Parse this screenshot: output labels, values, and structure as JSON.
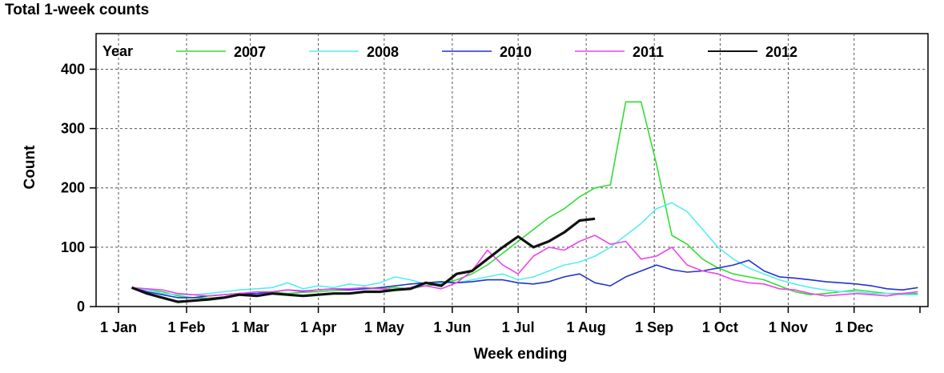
{
  "chart_data": {
    "type": "line",
    "title": "Total 1-week counts",
    "xlabel": "Week ending",
    "ylabel": "Count",
    "x_ticks": [
      "1 Jan",
      "1 Feb",
      "1 Mar",
      "1 Apr",
      "1 May",
      "1 Jun",
      "1 Jul",
      "1 Aug",
      "1 Sep",
      "1 Oct",
      "1 Nov",
      "1 Dec"
    ],
    "x_domain": [
      "2012-01-01",
      "2012-12-31"
    ],
    "ylim": [
      0,
      460
    ],
    "y_ticks": [
      0,
      100,
      200,
      300,
      400
    ],
    "grid": true,
    "legend": {
      "title": "Year",
      "placement": "top"
    },
    "series": [
      {
        "name": "2007",
        "color": "#33dd33",
        "width": 1.6,
        "points": [
          [
            "01-07",
            32
          ],
          [
            "01-14",
            28
          ],
          [
            "01-21",
            25
          ],
          [
            "01-28",
            18
          ],
          [
            "02-04",
            15
          ],
          [
            "02-11",
            14
          ],
          [
            "02-18",
            16
          ],
          [
            "02-25",
            20
          ],
          [
            "03-04",
            22
          ],
          [
            "03-11",
            25
          ],
          [
            "03-18",
            22
          ],
          [
            "03-25",
            24
          ],
          [
            "04-01",
            25
          ],
          [
            "04-08",
            27
          ],
          [
            "04-15",
            28
          ],
          [
            "04-22",
            30
          ],
          [
            "04-29",
            30
          ],
          [
            "05-06",
            32
          ],
          [
            "05-13",
            30
          ],
          [
            "05-20",
            35
          ],
          [
            "05-27",
            38
          ],
          [
            "06-03",
            45
          ],
          [
            "06-10",
            55
          ],
          [
            "06-17",
            70
          ],
          [
            "06-24",
            90
          ],
          [
            "07-01",
            110
          ],
          [
            "07-08",
            130
          ],
          [
            "07-15",
            150
          ],
          [
            "07-22",
            165
          ],
          [
            "07-29",
            185
          ],
          [
            "08-05",
            200
          ],
          [
            "08-12",
            205
          ],
          [
            "08-19",
            345
          ],
          [
            "08-26",
            345
          ],
          [
            "09-02",
            240
          ],
          [
            "09-09",
            120
          ],
          [
            "09-16",
            105
          ],
          [
            "09-23",
            80
          ],
          [
            "09-30",
            65
          ],
          [
            "10-07",
            55
          ],
          [
            "10-14",
            50
          ],
          [
            "10-21",
            45
          ],
          [
            "10-28",
            35
          ],
          [
            "11-04",
            25
          ],
          [
            "11-11",
            20
          ],
          [
            "11-18",
            22
          ],
          [
            "11-25",
            25
          ],
          [
            "12-02",
            28
          ],
          [
            "12-09",
            25
          ],
          [
            "12-16",
            22
          ],
          [
            "12-23",
            22
          ],
          [
            "12-30",
            22
          ]
        ]
      },
      {
        "name": "2008",
        "color": "#55eeee",
        "width": 1.6,
        "points": [
          [
            "01-07",
            30
          ],
          [
            "01-14",
            28
          ],
          [
            "01-21",
            22
          ],
          [
            "01-28",
            20
          ],
          [
            "02-04",
            20
          ],
          [
            "02-11",
            22
          ],
          [
            "02-18",
            25
          ],
          [
            "02-25",
            28
          ],
          [
            "03-04",
            30
          ],
          [
            "03-11",
            32
          ],
          [
            "03-18",
            40
          ],
          [
            "03-25",
            30
          ],
          [
            "04-01",
            35
          ],
          [
            "04-08",
            32
          ],
          [
            "04-15",
            38
          ],
          [
            "04-22",
            35
          ],
          [
            "04-29",
            40
          ],
          [
            "05-06",
            50
          ],
          [
            "05-13",
            45
          ],
          [
            "05-20",
            38
          ],
          [
            "05-27",
            40
          ],
          [
            "06-03",
            40
          ],
          [
            "06-10",
            45
          ],
          [
            "06-17",
            50
          ],
          [
            "06-24",
            55
          ],
          [
            "07-01",
            45
          ],
          [
            "07-08",
            50
          ],
          [
            "07-15",
            60
          ],
          [
            "07-22",
            70
          ],
          [
            "07-29",
            75
          ],
          [
            "08-05",
            85
          ],
          [
            "08-12",
            100
          ],
          [
            "08-19",
            120
          ],
          [
            "08-26",
            140
          ],
          [
            "09-02",
            165
          ],
          [
            "09-09",
            175
          ],
          [
            "09-16",
            160
          ],
          [
            "09-23",
            130
          ],
          [
            "09-30",
            100
          ],
          [
            "10-07",
            80
          ],
          [
            "10-14",
            65
          ],
          [
            "10-21",
            55
          ],
          [
            "10-28",
            45
          ],
          [
            "11-04",
            38
          ],
          [
            "11-11",
            32
          ],
          [
            "11-18",
            28
          ],
          [
            "11-25",
            25
          ],
          [
            "12-02",
            25
          ],
          [
            "12-09",
            22
          ],
          [
            "12-16",
            22
          ],
          [
            "12-23",
            20
          ],
          [
            "12-30",
            20
          ]
        ]
      },
      {
        "name": "2010",
        "color": "#2233cc",
        "width": 1.6,
        "points": [
          [
            "01-07",
            32
          ],
          [
            "01-14",
            25
          ],
          [
            "01-21",
            20
          ],
          [
            "01-28",
            15
          ],
          [
            "02-04",
            15
          ],
          [
            "02-11",
            18
          ],
          [
            "02-18",
            20
          ],
          [
            "02-25",
            22
          ],
          [
            "03-04",
            22
          ],
          [
            "03-11",
            25
          ],
          [
            "03-18",
            28
          ],
          [
            "03-25",
            26
          ],
          [
            "04-01",
            28
          ],
          [
            "04-08",
            30
          ],
          [
            "04-15",
            28
          ],
          [
            "04-22",
            30
          ],
          [
            "04-29",
            32
          ],
          [
            "05-06",
            35
          ],
          [
            "05-13",
            38
          ],
          [
            "05-20",
            40
          ],
          [
            "05-27",
            42
          ],
          [
            "06-03",
            40
          ],
          [
            "06-10",
            42
          ],
          [
            "06-17",
            45
          ],
          [
            "06-24",
            45
          ],
          [
            "07-01",
            40
          ],
          [
            "07-08",
            38
          ],
          [
            "07-15",
            42
          ],
          [
            "07-22",
            50
          ],
          [
            "07-29",
            55
          ],
          [
            "08-05",
            40
          ],
          [
            "08-12",
            35
          ],
          [
            "08-19",
            50
          ],
          [
            "08-26",
            60
          ],
          [
            "09-02",
            70
          ],
          [
            "09-09",
            62
          ],
          [
            "09-16",
            58
          ],
          [
            "09-23",
            60
          ],
          [
            "09-30",
            65
          ],
          [
            "10-07",
            70
          ],
          [
            "10-14",
            78
          ],
          [
            "10-21",
            60
          ],
          [
            "10-28",
            50
          ],
          [
            "11-04",
            48
          ],
          [
            "11-11",
            45
          ],
          [
            "11-18",
            42
          ],
          [
            "11-25",
            40
          ],
          [
            "12-02",
            38
          ],
          [
            "12-09",
            35
          ],
          [
            "12-16",
            30
          ],
          [
            "12-23",
            28
          ],
          [
            "12-30",
            32
          ]
        ]
      },
      {
        "name": "2011",
        "color": "#ee44ee",
        "width": 1.6,
        "points": [
          [
            "01-07",
            32
          ],
          [
            "01-14",
            30
          ],
          [
            "01-21",
            28
          ],
          [
            "01-28",
            22
          ],
          [
            "02-04",
            20
          ],
          [
            "02-11",
            18
          ],
          [
            "02-18",
            20
          ],
          [
            "02-25",
            22
          ],
          [
            "03-04",
            25
          ],
          [
            "03-11",
            25
          ],
          [
            "03-18",
            28
          ],
          [
            "03-25",
            25
          ],
          [
            "04-01",
            28
          ],
          [
            "04-08",
            30
          ],
          [
            "04-15",
            30
          ],
          [
            "04-22",
            32
          ],
          [
            "04-29",
            30
          ],
          [
            "05-06",
            28
          ],
          [
            "05-13",
            32
          ],
          [
            "05-20",
            35
          ],
          [
            "05-27",
            30
          ],
          [
            "06-03",
            40
          ],
          [
            "06-10",
            60
          ],
          [
            "06-17",
            95
          ],
          [
            "06-24",
            70
          ],
          [
            "07-01",
            55
          ],
          [
            "07-08",
            85
          ],
          [
            "07-15",
            100
          ],
          [
            "07-22",
            95
          ],
          [
            "07-29",
            110
          ],
          [
            "08-05",
            120
          ],
          [
            "08-12",
            105
          ],
          [
            "08-19",
            110
          ],
          [
            "08-26",
            80
          ],
          [
            "09-02",
            85
          ],
          [
            "09-09",
            100
          ],
          [
            "09-16",
            70
          ],
          [
            "09-23",
            60
          ],
          [
            "09-30",
            55
          ],
          [
            "10-07",
            45
          ],
          [
            "10-14",
            40
          ],
          [
            "10-21",
            38
          ],
          [
            "10-28",
            30
          ],
          [
            "11-04",
            28
          ],
          [
            "11-11",
            22
          ],
          [
            "11-18",
            18
          ],
          [
            "11-25",
            20
          ],
          [
            "12-02",
            22
          ],
          [
            "12-09",
            20
          ],
          [
            "12-16",
            18
          ],
          [
            "12-23",
            22
          ],
          [
            "12-30",
            25
          ]
        ]
      },
      {
        "name": "2012",
        "color": "#111111",
        "width": 3.2,
        "points": [
          [
            "01-07",
            32
          ],
          [
            "01-14",
            22
          ],
          [
            "01-21",
            15
          ],
          [
            "01-28",
            8
          ],
          [
            "02-04",
            10
          ],
          [
            "02-11",
            12
          ],
          [
            "02-18",
            15
          ],
          [
            "02-25",
            20
          ],
          [
            "03-04",
            18
          ],
          [
            "03-11",
            22
          ],
          [
            "03-18",
            20
          ],
          [
            "03-25",
            18
          ],
          [
            "04-01",
            20
          ],
          [
            "04-08",
            22
          ],
          [
            "04-15",
            22
          ],
          [
            "04-22",
            25
          ],
          [
            "04-29",
            25
          ],
          [
            "05-06",
            28
          ],
          [
            "05-13",
            30
          ],
          [
            "05-20",
            40
          ],
          [
            "05-27",
            35
          ],
          [
            "06-03",
            55
          ],
          [
            "06-10",
            60
          ],
          [
            "06-17",
            80
          ],
          [
            "06-24",
            100
          ],
          [
            "07-01",
            118
          ],
          [
            "07-08",
            100
          ],
          [
            "07-15",
            110
          ],
          [
            "07-22",
            125
          ],
          [
            "07-29",
            145
          ],
          [
            "08-05",
            148
          ]
        ]
      }
    ]
  }
}
